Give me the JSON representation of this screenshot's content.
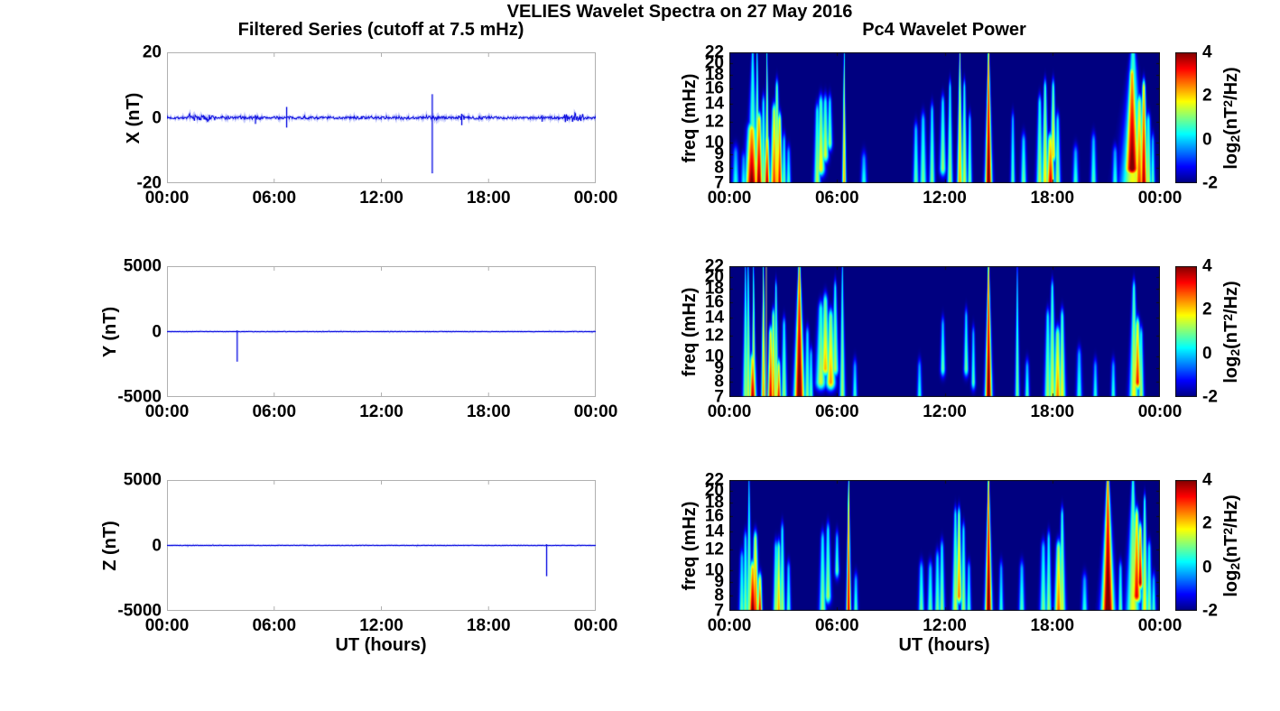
{
  "figure": {
    "title": "VELIES Wavelet Spectra on 27 May 2016",
    "left_title": "Filtered Series (cutoff at 7.5 mHz)",
    "right_title": "Pc4 Wavelet Power",
    "xlabel": "UT (hours)",
    "line_color": "#1414e0",
    "line_halo_color": "rgba(90,105,245,0.32)",
    "axis_box_color": "#b0b0b0",
    "heatmap_border_color": "#111111"
  },
  "time_axis": {
    "values": [
      0,
      6,
      12,
      18,
      24
    ],
    "labels": [
      "00:00",
      "06:00",
      "12:00",
      "18:00",
      "00:00"
    ]
  },
  "colorbar": {
    "lim": [
      -2,
      4
    ],
    "ticks": [
      4,
      2,
      0,
      -2
    ],
    "tick_labels": [
      "4",
      "2",
      "0",
      "-2"
    ],
    "label_parts": {
      "prefix": "log",
      "sub": "2",
      "mid": "(nT",
      "sup": "2",
      "suffix": "/Hz)"
    }
  },
  "chart_data": [
    {
      "type": "line",
      "row": 0,
      "panel": "x-series",
      "ylabel": "X (nT)",
      "ylim": [
        -20,
        20
      ],
      "yticks": [
        20,
        0,
        -20
      ],
      "ytick_labels": [
        "20",
        "0",
        "-20"
      ],
      "xlim_hours": [
        0,
        24
      ],
      "noise_base": 0.38,
      "noise_bursts": [
        [
          1.2,
          2.7,
          0.9
        ],
        [
          3.0,
          3.6,
          0.55
        ],
        [
          4.7,
          5.3,
          0.55
        ],
        [
          10.3,
          11.0,
          0.5
        ],
        [
          12.9,
          13.6,
          0.55
        ],
        [
          14.5,
          15.3,
          0.8
        ],
        [
          16.3,
          16.7,
          0.7
        ],
        [
          17.2,
          18.4,
          0.5
        ],
        [
          22.25,
          23.35,
          1.15
        ]
      ],
      "spikes": [
        [
          4.95,
          -1.9,
          0.9
        ],
        [
          6.7,
          -3.0,
          3.3
        ],
        [
          14.85,
          -17.0,
          7.2
        ],
        [
          16.5,
          -2.3,
          1.2
        ],
        [
          21.0,
          -1.2,
          0.8
        ]
      ],
      "seed": 7
    },
    {
      "type": "heatmap",
      "row": 0,
      "panel": "x-wavelet",
      "ylabel": "freq (mHz)",
      "yscale": "log",
      "ylim": [
        7,
        22
      ],
      "yticks": [
        22,
        20,
        18,
        16,
        14,
        12,
        10,
        9,
        8,
        7
      ],
      "zlim": [
        -2,
        4
      ],
      "events": [
        [
          0.35,
          7,
          9,
          0.5,
          0.06
        ],
        [
          0.8,
          7,
          8.5,
          0.4,
          0.05
        ],
        [
          1.25,
          7,
          11,
          4.2,
          0.11
        ],
        [
          1.3,
          7,
          22,
          1.2,
          0.1
        ],
        [
          1.55,
          7,
          22,
          1.6,
          0.05
        ],
        [
          1.65,
          7,
          12,
          4.0,
          0.07
        ],
        [
          1.9,
          7,
          14,
          1.3,
          0.05
        ],
        [
          2.1,
          7,
          22,
          2.0,
          0.04
        ],
        [
          2.1,
          7,
          10,
          3.8,
          0.05
        ],
        [
          2.5,
          7,
          13,
          3.0,
          0.07
        ],
        [
          2.65,
          7,
          16,
          2.2,
          0.06
        ],
        [
          2.8,
          7,
          12,
          3.5,
          0.05
        ],
        [
          3.05,
          7,
          10,
          1.0,
          0.04
        ],
        [
          3.3,
          7,
          9,
          0.8,
          0.04
        ],
        [
          4.9,
          7,
          13,
          1.4,
          0.06
        ],
        [
          5.1,
          8,
          14,
          1.9,
          0.08
        ],
        [
          5.35,
          9,
          14,
          1.6,
          0.07
        ],
        [
          5.6,
          10,
          14,
          1.2,
          0.06
        ],
        [
          6.4,
          7,
          22,
          2.3,
          0.035
        ],
        [
          7.5,
          7,
          8.5,
          0.6,
          0.05
        ],
        [
          10.4,
          7,
          11,
          0.9,
          0.05
        ],
        [
          10.8,
          7,
          12,
          1.0,
          0.06
        ],
        [
          11.3,
          7,
          13,
          1.1,
          0.05
        ],
        [
          11.9,
          8,
          14,
          1.2,
          0.06
        ],
        [
          12.3,
          7,
          16,
          1.3,
          0.05
        ],
        [
          12.85,
          7,
          22,
          2.4,
          0.05
        ],
        [
          13.1,
          7,
          16,
          1.5,
          0.05
        ],
        [
          13.4,
          7,
          12,
          1.0,
          0.04
        ],
        [
          14.45,
          7,
          22,
          4.4,
          0.06
        ],
        [
          15.8,
          7,
          12,
          0.8,
          0.04
        ],
        [
          16.4,
          7,
          10,
          1.0,
          0.05
        ],
        [
          17.3,
          7,
          14,
          1.4,
          0.06
        ],
        [
          17.6,
          7,
          16,
          1.9,
          0.06
        ],
        [
          17.9,
          7,
          10,
          3.6,
          0.07
        ],
        [
          18.05,
          9,
          16,
          2.0,
          0.06
        ],
        [
          18.3,
          7,
          12,
          1.3,
          0.05
        ],
        [
          19.3,
          7,
          9,
          0.7,
          0.05
        ],
        [
          20.3,
          7,
          10,
          0.8,
          0.05
        ],
        [
          21.5,
          7,
          9,
          0.6,
          0.05
        ],
        [
          22.45,
          8,
          18,
          4.3,
          0.14
        ],
        [
          22.5,
          7,
          22,
          1.7,
          0.22
        ],
        [
          22.85,
          7,
          14,
          3.0,
          0.09
        ],
        [
          23.1,
          7,
          16,
          3.8,
          0.07
        ],
        [
          23.35,
          7,
          12,
          1.5,
          0.06
        ],
        [
          23.6,
          7,
          10,
          0.8,
          0.04
        ]
      ],
      "gray_lines": []
    },
    {
      "type": "line",
      "row": 1,
      "panel": "y-series",
      "ylabel": "Y (nT)",
      "ylim": [
        -5000,
        5000
      ],
      "yticks": [
        5000,
        0,
        -5000
      ],
      "ytick_labels": [
        "5000",
        "0",
        "-5000"
      ],
      "xlim_hours": [
        0,
        24
      ],
      "noise_base": 16,
      "noise_bursts": [],
      "spikes": [
        [
          3.93,
          -2300,
          90
        ]
      ],
      "seed": 21
    },
    {
      "type": "heatmap",
      "row": 1,
      "panel": "y-wavelet",
      "ylabel": "freq (mHz)",
      "yscale": "log",
      "ylim": [
        7,
        22
      ],
      "yticks": [
        22,
        20,
        18,
        16,
        14,
        12,
        10,
        9,
        8,
        7
      ],
      "zlim": [
        -2,
        4
      ],
      "events": [
        [
          0.9,
          7,
          22,
          1.2,
          0.05
        ],
        [
          1.05,
          7,
          22,
          1.5,
          0.05
        ],
        [
          1.3,
          7,
          9.5,
          3.8,
          0.06
        ],
        [
          1.35,
          7,
          22,
          1.8,
          0.04
        ],
        [
          1.9,
          7,
          22,
          2.4,
          0.04
        ],
        [
          2.3,
          7,
          12,
          3.6,
          0.05
        ],
        [
          2.45,
          7,
          14,
          2.6,
          0.05
        ],
        [
          2.6,
          7,
          18,
          1.6,
          0.05
        ],
        [
          2.75,
          7,
          9,
          3.4,
          0.04
        ],
        [
          3.05,
          7,
          13,
          1.2,
          0.05
        ],
        [
          3.9,
          7,
          22,
          4.5,
          0.09
        ],
        [
          4.35,
          7,
          12,
          1.1,
          0.05
        ],
        [
          4.55,
          7,
          10,
          0.9,
          0.04
        ],
        [
          5.1,
          8,
          15,
          1.5,
          0.1
        ],
        [
          5.35,
          9,
          16,
          2.2,
          0.1
        ],
        [
          5.65,
          8,
          14,
          2.4,
          0.09
        ],
        [
          5.9,
          9,
          18,
          1.4,
          0.07
        ],
        [
          6.3,
          7,
          22,
          1.3,
          0.05
        ],
        [
          7.0,
          7,
          9,
          0.7,
          0.04
        ],
        [
          10.6,
          7,
          9,
          0.6,
          0.04
        ],
        [
          11.9,
          9,
          13,
          0.9,
          0.05
        ],
        [
          13.2,
          9,
          14,
          1.0,
          0.05
        ],
        [
          13.6,
          8,
          12,
          0.8,
          0.04
        ],
        [
          14.45,
          7,
          22,
          4.4,
          0.06
        ],
        [
          16.05,
          7,
          22,
          1.0,
          0.04
        ],
        [
          16.6,
          7,
          9,
          0.8,
          0.04
        ],
        [
          17.75,
          7,
          14,
          1.3,
          0.06
        ],
        [
          18.0,
          7,
          18,
          1.6,
          0.07
        ],
        [
          18.3,
          7,
          12,
          2.6,
          0.07
        ],
        [
          18.55,
          7,
          14,
          1.8,
          0.06
        ],
        [
          19.5,
          7,
          10,
          0.7,
          0.05
        ],
        [
          20.4,
          7,
          9,
          0.6,
          0.04
        ],
        [
          21.4,
          7,
          9,
          0.7,
          0.04
        ],
        [
          22.55,
          7,
          18,
          1.8,
          0.08
        ],
        [
          22.75,
          8,
          13,
          3.2,
          0.07
        ],
        [
          22.95,
          7,
          12,
          1.4,
          0.05
        ]
      ],
      "gray_lines": [
        2.05
      ]
    },
    {
      "type": "line",
      "row": 2,
      "panel": "z-series",
      "ylabel": "Z (nT)",
      "ylim": [
        -5000,
        5000
      ],
      "yticks": [
        5000,
        0,
        -5000
      ],
      "ytick_labels": [
        "5000",
        "0",
        "-5000"
      ],
      "xlim_hours": [
        0,
        24
      ],
      "noise_base": 16,
      "noise_bursts": [],
      "spikes": [
        [
          21.25,
          -2350,
          90
        ]
      ],
      "seed": 33
    },
    {
      "type": "heatmap",
      "row": 2,
      "panel": "z-wavelet",
      "ylabel": "freq (mHz)",
      "yscale": "log",
      "ylim": [
        7,
        22
      ],
      "yticks": [
        22,
        20,
        18,
        16,
        14,
        12,
        10,
        9,
        8,
        7
      ],
      "zlim": [
        -2,
        4
      ],
      "events": [
        [
          0.7,
          7,
          11,
          0.9,
          0.05
        ],
        [
          0.9,
          7,
          13,
          1.1,
          0.05
        ],
        [
          1.1,
          7,
          22,
          1.2,
          0.05
        ],
        [
          1.3,
          7,
          10,
          4.2,
          0.07
        ],
        [
          1.45,
          7,
          13,
          3.0,
          0.06
        ],
        [
          1.7,
          7,
          9,
          3.6,
          0.04
        ],
        [
          2.6,
          7,
          12,
          1.4,
          0.05
        ],
        [
          2.75,
          7,
          12,
          2.4,
          0.05
        ],
        [
          2.95,
          7,
          14,
          1.3,
          0.05
        ],
        [
          3.3,
          7,
          10,
          0.9,
          0.04
        ],
        [
          5.2,
          7,
          13,
          1.2,
          0.06
        ],
        [
          5.5,
          8,
          14,
          1.3,
          0.06
        ],
        [
          6.0,
          10,
          13,
          0.9,
          0.05
        ],
        [
          6.65,
          7,
          22,
          3.6,
          0.04
        ],
        [
          7.05,
          7,
          9,
          0.8,
          0.04
        ],
        [
          10.7,
          7,
          10,
          1.0,
          0.05
        ],
        [
          11.2,
          7,
          10,
          0.9,
          0.05
        ],
        [
          11.6,
          7,
          11,
          1.0,
          0.05
        ],
        [
          11.85,
          7,
          12,
          1.2,
          0.05
        ],
        [
          12.6,
          7,
          16,
          1.5,
          0.06
        ],
        [
          12.8,
          8,
          16,
          2.6,
          0.06
        ],
        [
          13.05,
          7,
          14,
          1.3,
          0.05
        ],
        [
          13.35,
          7,
          10,
          0.8,
          0.04
        ],
        [
          14.45,
          7,
          22,
          4.4,
          0.06
        ],
        [
          15.15,
          7,
          10,
          0.6,
          0.04
        ],
        [
          16.3,
          7,
          10,
          0.8,
          0.05
        ],
        [
          17.5,
          7,
          12,
          1.0,
          0.06
        ],
        [
          17.8,
          7,
          13,
          1.2,
          0.05
        ],
        [
          18.35,
          7,
          12,
          2.8,
          0.07
        ],
        [
          18.55,
          7,
          16,
          1.6,
          0.06
        ],
        [
          19.8,
          7,
          9,
          0.6,
          0.05
        ],
        [
          21.1,
          7,
          22,
          4.6,
          0.11
        ],
        [
          21.8,
          7,
          10,
          1.0,
          0.04
        ],
        [
          22.5,
          7,
          22,
          1.7,
          0.12
        ],
        [
          22.7,
          8,
          16,
          3.4,
          0.09
        ],
        [
          22.9,
          9,
          14,
          3.8,
          0.06
        ],
        [
          23.15,
          7,
          18,
          1.8,
          0.06
        ],
        [
          23.4,
          7,
          12,
          1.2,
          0.05
        ],
        [
          23.65,
          7,
          9,
          0.8,
          0.04
        ]
      ],
      "gray_lines": []
    }
  ]
}
